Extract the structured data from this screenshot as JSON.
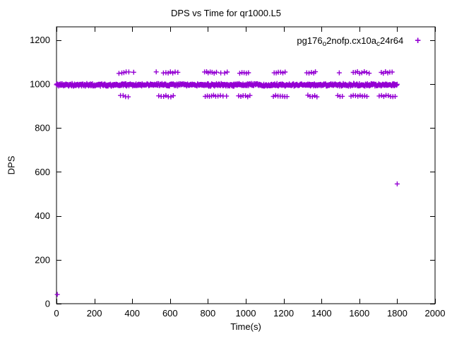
{
  "figure": {
    "background": "#ffffff",
    "text_color": "#000000"
  },
  "chart_data": {
    "type": "scatter",
    "title": "DPS vs Time for qr1000.L5",
    "xlabel": "Time(s)",
    "ylabel": "DPS",
    "xlim": [
      0,
      2000
    ],
    "ylim": [
      0,
      1260
    ],
    "x_ticks": [
      0,
      200,
      400,
      600,
      800,
      1000,
      1200,
      1400,
      1600,
      1800,
      2000
    ],
    "y_ticks": [
      0,
      200,
      400,
      600,
      800,
      1000,
      1200
    ],
    "grid": false,
    "marker": "plus",
    "marker_color": "#9400d3",
    "legend": {
      "position": "top-right-inside",
      "label_plain": "pg176_o2nofp.cx10a_c24r64",
      "label_parts": [
        {
          "t": "pg176",
          "sub": false
        },
        {
          "t": "o",
          "sub": true
        },
        {
          "t": "2nofp.cx10a",
          "sub": false
        },
        {
          "t": "c",
          "sub": true
        },
        {
          "t": "24r64",
          "sub": false
        }
      ]
    },
    "series": [
      {
        "name": "pg176_o2nofp.cx10a_c24r64",
        "dense_band": {
          "description": "near-continuous band of plus markers",
          "x_start": 0,
          "x_end": 1800,
          "x_step": 2.5,
          "y_center": 996,
          "y_spread": 7
        },
        "upper_outliers": {
          "y": 1052,
          "y_jitter": 4,
          "x": [
            330,
            345,
            356,
            368,
            382,
            408,
            527,
            565,
            578,
            590,
            602,
            614,
            627,
            641,
            782,
            793,
            801,
            812,
            822,
            833,
            845,
            868,
            888,
            902,
            968,
            980,
            991,
            1003,
            1014,
            1150,
            1161,
            1172,
            1184,
            1196,
            1208,
            1322,
            1334,
            1347,
            1359,
            1368,
            1494,
            1568,
            1579,
            1590,
            1601,
            1613,
            1626,
            1639,
            1652,
            1716,
            1727,
            1738,
            1750,
            1761,
            1773
          ]
        },
        "lower_outliers": {
          "y": 945,
          "y_jitter": 4,
          "x": [
            338,
            352,
            365,
            379,
            540,
            553,
            566,
            578,
            591,
            604,
            617,
            786,
            797,
            808,
            819,
            830,
            841,
            853,
            866,
            880,
            898,
            962,
            974,
            986,
            998,
            1010,
            1022,
            1146,
            1158,
            1170,
            1182,
            1194,
            1206,
            1218,
            1328,
            1340,
            1352,
            1364,
            1376,
            1486,
            1498,
            1510,
            1556,
            1568,
            1580,
            1592,
            1604,
            1616,
            1628,
            1640,
            1705,
            1717,
            1729,
            1741,
            1753,
            1765,
            1777,
            1789
          ]
        },
        "isolated_points": [
          [
            4,
            42
          ],
          [
            1800,
            545
          ]
        ]
      }
    ]
  }
}
